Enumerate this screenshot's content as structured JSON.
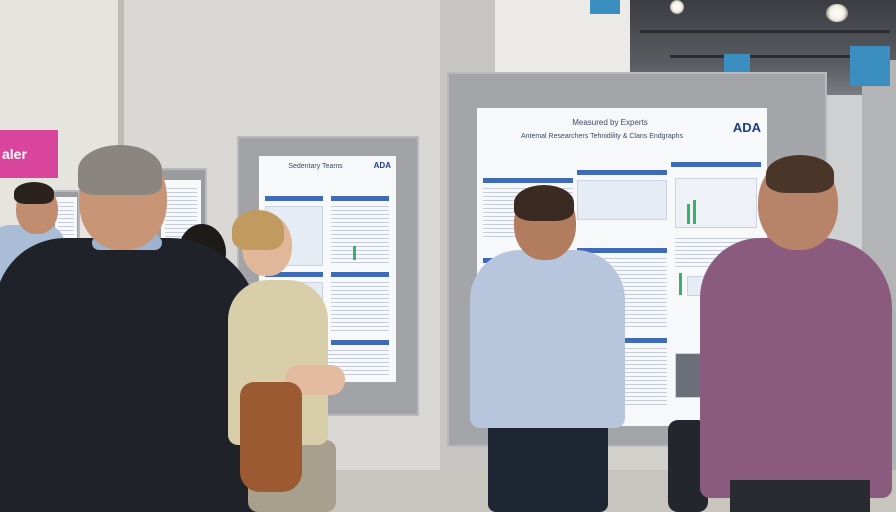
{
  "signs": {
    "pink": "aler",
    "blue_top": "",
    "blue_mid": "",
    "blue_right": ""
  },
  "posters": {
    "main": {
      "title_line1": "Measured by Experts",
      "title_line2": "Antemal Researchers Tehnidility & Clans Endgraphs",
      "logo": "ADA"
    },
    "middle": {
      "title_line1": "Sedentary Teams",
      "logo": "ADA"
    }
  },
  "colors": {
    "poster_header_blue": "#3e6ab8",
    "board_gray": "#9a9ca0",
    "sign_pink": "#d8459b",
    "sign_blue": "#3a8fc0"
  }
}
